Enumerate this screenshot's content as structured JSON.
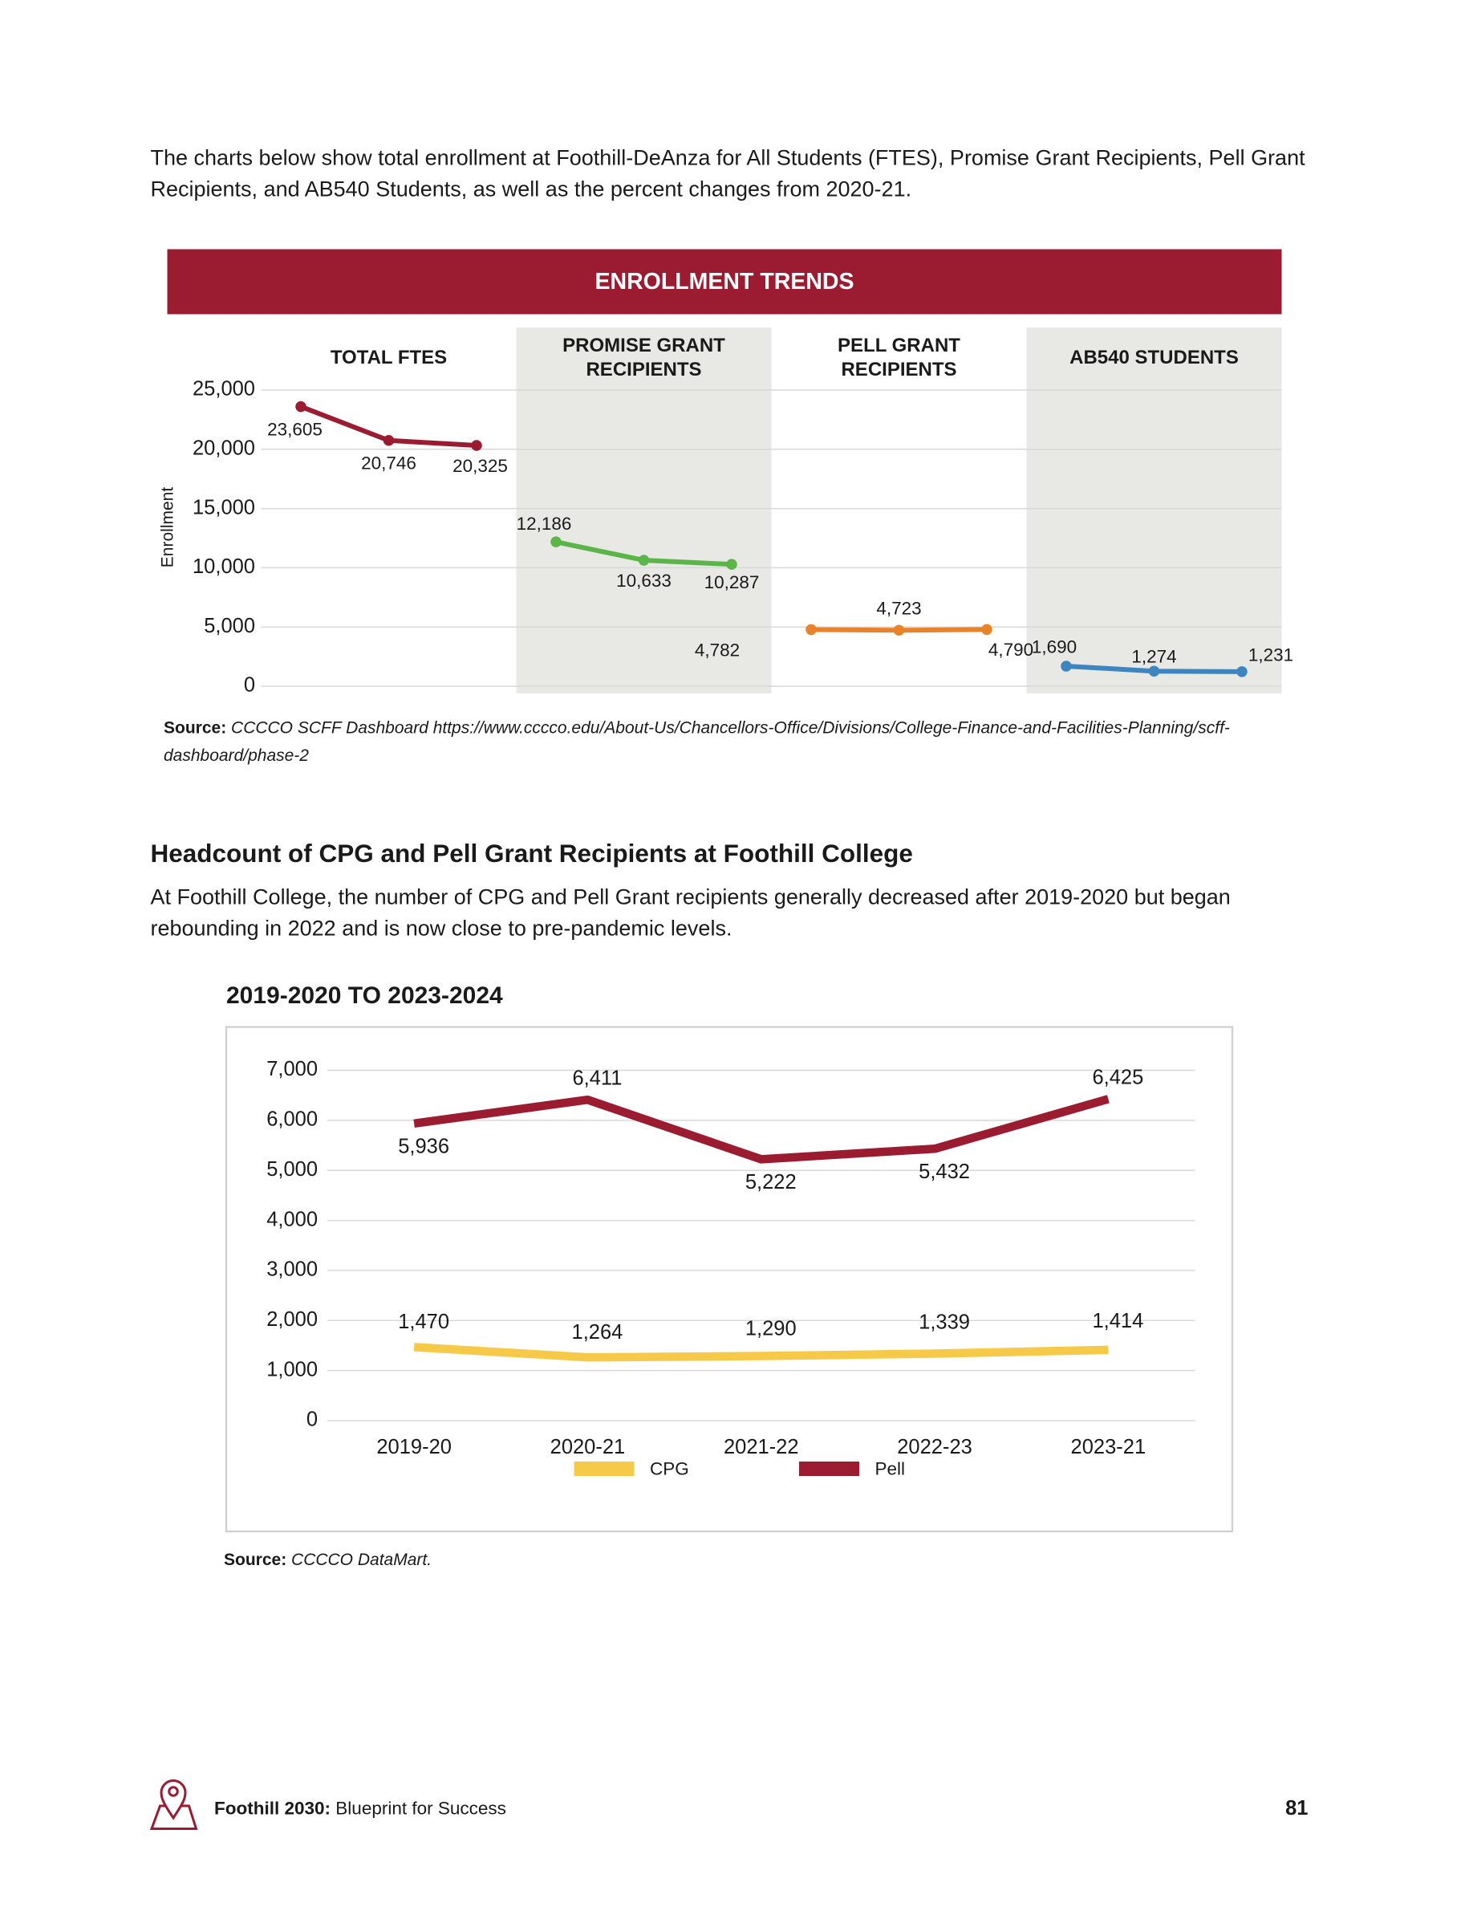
{
  "intro": "The charts below show total enrollment at Foothill-DeAnza for All Students (FTES), Promise Grant Recipients, Pell Grant Recipients, and AB540 Students, as well as the percent changes from 2020-21.",
  "section": {
    "heading": "Headcount of CPG and Pell Grant Recipients at Foothill College",
    "text": "At Foothill College, the number of CPG and Pell Grant recipients generally decreased after 2019-2020 but began rebounding in 2022 and is now close to pre-pandemic levels."
  },
  "chart_data": [
    {
      "type": "line",
      "title": "ENROLLMENT TRENDS",
      "y_label": "Enrollment",
      "ylim": [
        0,
        25000
      ],
      "yticks": [
        0,
        {
          "value": 5000,
          "label": "5,000"
        },
        {
          "value": 10000,
          "label": "10,000"
        },
        {
          "value": 15000,
          "label": "15,000"
        },
        {
          "value": 20000,
          "label": "20,000"
        },
        {
          "value": 25000,
          "label": "25,000"
        }
      ],
      "grid": true,
      "series": [
        {
          "name": "TOTAL FTES",
          "color": "#9b1b30",
          "values": [
            23605,
            20746,
            20325
          ],
          "value_labels": [
            "23,605",
            "20,746",
            "20,325"
          ]
        },
        {
          "name": "PROMISE GRANT RECIPIENTS",
          "color": "#5bb548",
          "values": [
            12186,
            10633,
            10287
          ],
          "value_labels": [
            "12,186",
            "10,633",
            "10,287"
          ]
        },
        {
          "name": "PELL GRANT RECIPIENTS",
          "color": "#e8832a",
          "values": [
            4782,
            4723,
            4790
          ],
          "value_labels": [
            "4,782",
            "4,723",
            "4,790"
          ]
        },
        {
          "name": "AB540 STUDENTS",
          "color": "#3d85c0",
          "values": [
            1690,
            1274,
            1231
          ],
          "value_labels": [
            "1,690",
            "1,274",
            "1,231"
          ]
        }
      ]
    },
    {
      "type": "line",
      "title": "2019-2020 TO 2023-2024",
      "categories": [
        "2019-20",
        "2020-21",
        "2021-22",
        "2022-23",
        "2023-21"
      ],
      "ylim": [
        0,
        7000
      ],
      "yticks": [
        0,
        {
          "value": 1000,
          "label": "1,000"
        },
        {
          "value": 2000,
          "label": "2,000"
        },
        {
          "value": 3000,
          "label": "3,000"
        },
        {
          "value": 4000,
          "label": "4,000"
        },
        {
          "value": 5000,
          "label": "5,000"
        },
        {
          "value": 6000,
          "label": "6,000"
        },
        {
          "value": 7000,
          "label": "7,000"
        }
      ],
      "grid": true,
      "legend": "bottom",
      "series": [
        {
          "name": "CPG",
          "color": "#f7c948",
          "values": [
            1470,
            1264,
            1290,
            1339,
            1414
          ],
          "value_labels": [
            "1,470",
            "1,264",
            "1,290",
            "1,339",
            "1,414"
          ]
        },
        {
          "name": "Pell",
          "color": "#9b1b30",
          "values": [
            5936,
            6411,
            5222,
            5432,
            6425
          ],
          "value_labels": [
            "5,936",
            "6,411",
            "5,222",
            "5,432",
            "6,425"
          ]
        }
      ]
    }
  ],
  "sources": [
    {
      "label": "Source:",
      "text": "CCCCO SCFF Dashboard https://www.cccco.edu/About-Us/Chancellors-Office/Divisions/College-Finance-and-Facilities-Planning/scff-dashboard/phase-2"
    },
    {
      "label": "Source:",
      "text": "CCCCO DataMart."
    }
  ],
  "footer": {
    "brand": "Foothill 2030:",
    "subtitle": "Blueprint for Success",
    "page": 81
  }
}
